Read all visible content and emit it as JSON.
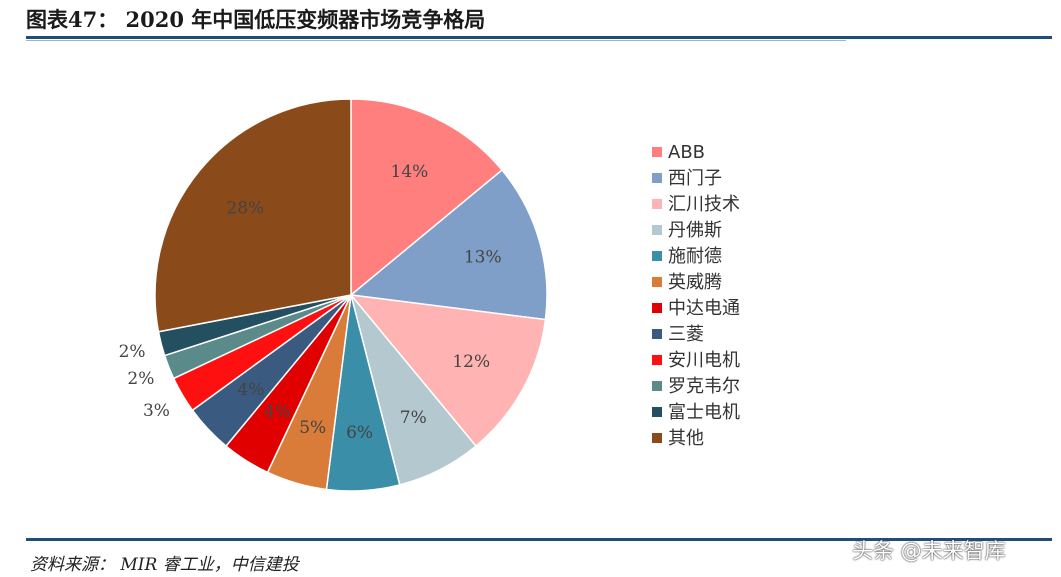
{
  "header": {
    "title": "图表47：  2020 年中国低压变频器市场竞争格局"
  },
  "footer": {
    "source": "资料来源：  MIR 睿工业，中信建投",
    "watermark": "头条 @未来智库"
  },
  "chart_data": {
    "type": "pie",
    "title": "",
    "categories": [
      "ABB",
      "西门子",
      "汇川技术",
      "丹佛斯",
      "施耐德",
      "英威腾",
      "中达电通",
      "三菱",
      "安川电机",
      "罗克韦尔",
      "富士电机",
      "其他"
    ],
    "values": [
      14,
      13,
      12,
      7,
      6,
      5,
      4,
      4,
      3,
      2,
      2,
      28
    ],
    "value_labels": [
      "14%",
      "13%",
      "12%",
      "7%",
      "6%",
      "5%",
      "4%",
      "4%",
      "3%",
      "2%",
      "2%",
      "28%"
    ],
    "colors": [
      "#ff7f7f",
      "#7f9fc8",
      "#ffb3b3",
      "#b4c8cf",
      "#3a8ea7",
      "#d97c3a",
      "#e00000",
      "#3a5a80",
      "#ff1010",
      "#5a8a8a",
      "#244f60",
      "#8b4a1a"
    ],
    "start_angle": "12 o'clock",
    "direction": "clockwise",
    "legend_position": "right"
  }
}
